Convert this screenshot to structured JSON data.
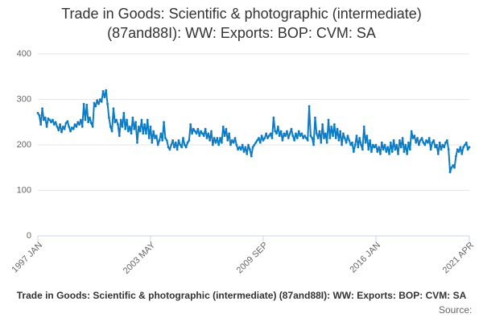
{
  "chart_data": {
    "type": "line",
    "title": "Trade in Goods: Scientific & photographic (intermediate)",
    "title_line2": "(87and88I): WW: Exports: BOP: CVM: SA",
    "footer_title": "Trade in Goods: Scientific & photographic (intermediate) (87and88I): WW: Exports: BOP: CVM: SA",
    "source": "Source:",
    "ylim": [
      0,
      400
    ],
    "yticks": [
      0,
      100,
      200,
      300,
      400
    ],
    "grid": true,
    "categories": [
      "1997 JAN",
      null,
      null,
      null,
      null,
      null,
      null,
      null,
      null,
      null,
      null,
      null,
      null,
      null,
      null,
      null,
      null,
      null,
      null,
      null,
      null,
      null,
      null,
      null,
      null,
      null,
      null,
      null,
      null,
      null,
      null,
      null,
      null,
      null,
      null,
      null,
      null,
      null,
      null,
      null,
      null,
      null,
      null,
      null,
      null,
      null,
      null,
      null,
      null,
      null,
      null,
      null,
      null,
      null,
      null,
      null,
      null,
      null,
      null,
      null,
      null,
      null,
      null,
      null,
      null,
      null,
      null,
      null,
      null,
      null,
      null,
      null,
      null,
      null,
      null,
      null,
      "2003 MAY",
      null,
      null,
      null,
      null,
      null,
      null,
      null,
      null,
      null,
      null,
      null,
      null,
      null,
      null,
      null,
      null,
      null,
      null,
      null,
      null,
      null,
      null,
      null,
      null,
      null,
      null,
      null,
      null,
      null,
      null,
      null,
      null,
      null,
      null,
      null,
      null,
      null,
      null,
      null,
      null,
      null,
      null,
      null,
      null,
      null,
      null,
      null,
      null,
      null,
      null,
      null,
      null,
      null,
      null,
      null,
      null,
      null,
      null,
      null,
      null,
      null,
      null,
      null,
      null,
      null,
      null,
      null,
      null,
      null,
      null,
      null,
      null,
      null,
      null,
      null,
      "2009 SEP",
      null,
      null,
      null,
      null,
      null,
      null,
      null,
      null,
      null,
      null,
      null,
      null,
      null,
      null,
      null,
      null,
      null,
      null,
      null,
      null,
      null,
      null,
      null,
      null,
      null,
      null,
      null,
      null,
      null,
      null,
      null,
      null,
      null,
      null,
      null,
      null,
      null,
      null,
      null,
      null,
      null,
      null,
      null,
      null,
      null,
      null,
      null,
      null,
      null,
      null,
      null,
      null,
      null,
      null,
      null,
      null,
      null,
      null,
      null,
      null,
      null,
      null,
      null,
      null,
      null,
      null,
      null,
      null,
      null,
      null,
      null,
      null,
      null,
      null,
      null,
      "2016 JAN",
      null,
      null,
      null,
      null,
      null,
      null,
      null,
      null,
      null,
      null,
      null,
      null,
      null,
      null,
      null,
      null,
      null,
      null,
      null,
      null,
      null,
      null,
      null,
      null,
      null,
      null,
      null,
      null,
      null,
      null,
      null,
      null,
      null,
      null,
      null,
      null,
      null,
      null,
      null,
      null,
      null,
      null,
      null,
      null,
      null,
      null,
      null,
      null,
      null,
      null,
      null,
      null,
      null,
      null,
      null,
      null,
      null,
      null,
      null,
      null,
      null,
      null,
      "2021 APR"
    ],
    "series": [
      {
        "color": "#0e7cc4",
        "values": [
          270,
          265,
          245,
          280,
          255,
          260,
          240,
          258,
          255,
          250,
          255,
          245,
          250,
          240,
          232,
          245,
          228,
          240,
          235,
          248,
          252,
          240,
          230,
          238,
          235,
          245,
          240,
          250,
          245,
          255,
          240,
          290,
          255,
          288,
          250,
          260,
          248,
          240,
          292,
          285,
          298,
          290,
          300,
          295,
          318,
          305,
          320,
          290,
          260,
          240,
          230,
          280,
          250,
          255,
          245,
          220,
          255,
          240,
          270,
          235,
          255,
          230,
          240,
          225,
          260,
          235,
          250,
          205,
          240,
          230,
          255,
          225,
          245,
          225,
          255,
          215,
          240,
          205,
          230,
          215,
          220,
          200,
          210,
          225,
          210,
          250,
          215,
          210,
          195,
          190,
          200,
          210,
          195,
          205,
          190,
          210,
          200,
          195,
          215,
          200,
          195,
          205,
          210,
          245,
          225,
          235,
          230,
          225,
          235,
          220,
          230,
          225,
          220,
          235,
          215,
          225,
          210,
          230,
          200,
          215,
          205,
          215,
          200,
          215,
          205,
          240,
          220,
          235,
          210,
          225,
          200,
          210,
          205,
          215,
          200,
          190,
          195,
          190,
          200,
          185,
          195,
          180,
          200,
          190,
          175,
          195,
          200,
          205,
          210,
          215,
          205,
          220,
          210,
          215,
          225,
          215,
          220,
          225,
          215,
          260,
          230,
          225,
          240,
          220,
          230,
          210,
          225,
          220,
          230,
          215,
          225,
          235,
          220,
          210,
          225,
          215,
          230,
          220,
          225,
          215,
          220,
          215,
          210,
          285,
          220,
          215,
          200,
          260,
          225,
          215,
          230,
          205,
          245,
          215,
          225,
          205,
          255,
          215,
          240,
          220,
          245,
          215,
          235,
          210,
          230,
          200,
          225,
          215,
          205,
          220,
          210,
          200,
          205,
          185,
          200,
          220,
          195,
          215,
          200,
          190,
          240,
          205,
          220,
          190,
          210,
          185,
          200,
          195,
          200,
          185,
          195,
          180,
          205,
          190,
          200,
          185,
          195,
          180,
          205,
          185,
          210,
          190,
          200,
          180,
          210,
          195,
          215,
          185,
          200,
          180,
          205,
          190,
          230,
          215,
          220,
          205,
          215,
          200,
          210,
          215,
          205,
          200,
          210,
          205,
          215,
          190,
          205,
          210,
          195,
          200,
          180,
          205,
          190,
          200,
          195,
          205,
          210,
          190,
          140,
          150,
          155,
          150,
          175,
          190,
          185,
          195,
          180,
          195,
          200,
          205,
          190,
          195
        ]
      }
    ]
  }
}
